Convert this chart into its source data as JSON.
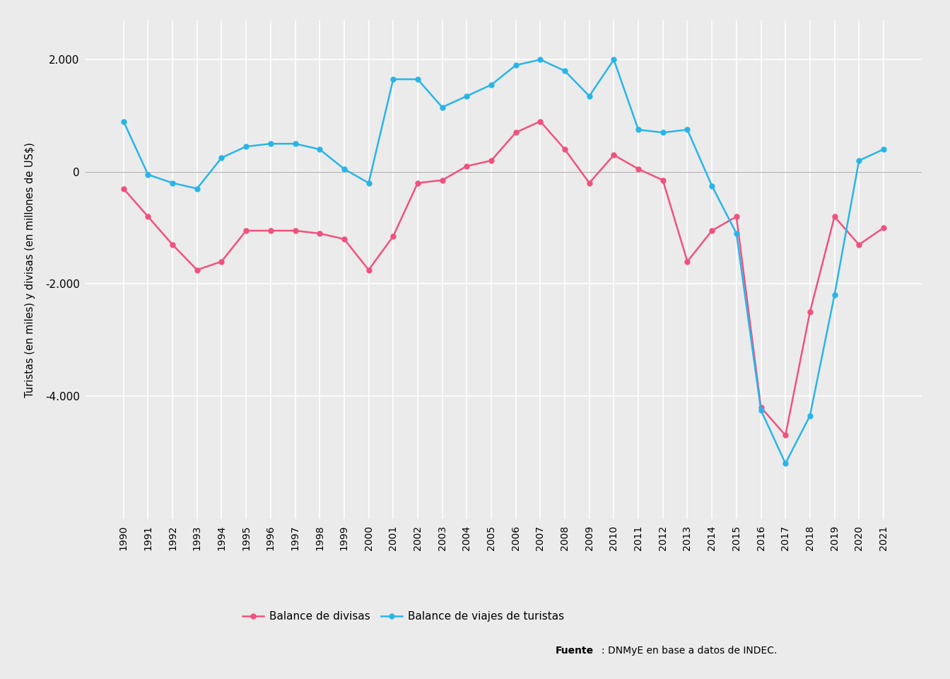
{
  "years": [
    1990,
    1991,
    1992,
    1993,
    1994,
    1995,
    1996,
    1997,
    1998,
    1999,
    2000,
    2001,
    2002,
    2003,
    2004,
    2005,
    2006,
    2007,
    2008,
    2009,
    2010,
    2011,
    2012,
    2013,
    2014,
    2015,
    2016,
    2017,
    2018,
    2019,
    2020,
    2021
  ],
  "balance_divisas": [
    -300,
    -800,
    -1300,
    -1750,
    -1600,
    -1050,
    -1050,
    -1050,
    -1100,
    -1200,
    -1750,
    -1150,
    -200,
    -150,
    100,
    200,
    700,
    900,
    400,
    -200,
    300,
    50,
    -150,
    -1600,
    -1050,
    -800,
    -4200,
    -4700,
    -2500,
    -800,
    -1300,
    -1000
  ],
  "balance_turistas": [
    900,
    -50,
    -200,
    -300,
    250,
    450,
    500,
    500,
    400,
    50,
    -200,
    1650,
    1650,
    1150,
    1350,
    1550,
    1900,
    2000,
    1800,
    1350,
    2000,
    750,
    700,
    750,
    -250,
    -1100,
    -4250,
    -5200,
    -4350,
    -2200,
    200,
    400
  ],
  "divisas_color": "#F0527F",
  "turistas_color": "#29B5E8",
  "ylabel": "Turistas (en miles) y divisas (en millones de US$)",
  "ylim_min": -6200,
  "ylim_max": 2700,
  "ytick_values": [
    -4000,
    -2000,
    0,
    2000
  ],
  "ytick_labels": [
    "-4.000",
    "-2.000",
    "0",
    "2.000"
  ],
  "bg_color": "#ebebeb",
  "grid_color": "#ffffff",
  "legend_divisas": "Balance de divisas",
  "legend_turistas": "Balance de viajes de turistas",
  "fuente_bold": "Fuente",
  "fuente_rest": ": DNMyE en base a datos de INDEC.",
  "marker_size": 5,
  "line_width": 1.8
}
